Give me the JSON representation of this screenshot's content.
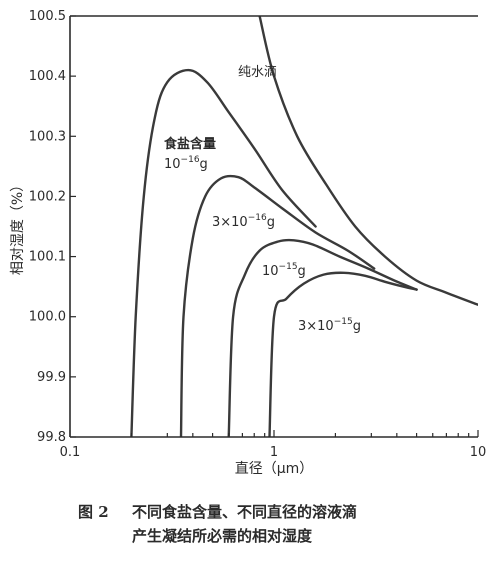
{
  "chart_data": {
    "type": "line",
    "x_scale": "log",
    "xlim": [
      0.1,
      10
    ],
    "ylim": [
      99.8,
      100.5
    ],
    "x_ticks": [
      "0.1",
      "1",
      "10"
    ],
    "y_ticks": [
      "99.8",
      "99.9",
      "100.0",
      "100.1",
      "100.2",
      "100.3",
      "100.4",
      "100.5"
    ],
    "xlabel": "直径（μm）",
    "ylabel": "相对湿度（%）",
    "series": [
      {
        "name": "纯水滴",
        "points": [
          [
            0.85,
            100.5
          ],
          [
            1,
            100.4
          ],
          [
            1.3,
            100.3
          ],
          [
            1.8,
            100.22
          ],
          [
            2.5,
            100.15
          ],
          [
            3.5,
            100.1
          ],
          [
            5,
            100.06
          ],
          [
            7,
            100.04
          ],
          [
            10,
            100.02
          ]
        ]
      },
      {
        "name": "10⁻¹⁶ g",
        "points": [
          [
            0.2,
            99.8
          ],
          [
            0.21,
            100.0
          ],
          [
            0.23,
            100.2
          ],
          [
            0.26,
            100.33
          ],
          [
            0.3,
            100.39
          ],
          [
            0.38,
            100.41
          ],
          [
            0.47,
            100.39
          ],
          [
            0.6,
            100.34
          ],
          [
            0.8,
            100.28
          ],
          [
            1.1,
            100.21
          ],
          [
            1.6,
            100.15
          ]
        ]
      },
      {
        "name": "3×10⁻¹⁶ g",
        "points": [
          [
            0.35,
            99.8
          ],
          [
            0.36,
            100.0
          ],
          [
            0.4,
            100.13
          ],
          [
            0.46,
            100.2
          ],
          [
            0.55,
            100.23
          ],
          [
            0.67,
            100.232
          ],
          [
            0.8,
            100.215
          ],
          [
            1.1,
            100.18
          ],
          [
            1.6,
            100.14
          ],
          [
            2.3,
            100.11
          ],
          [
            3.1,
            100.08
          ]
        ]
      },
      {
        "name": "10⁻¹⁵ g",
        "points": [
          [
            0.6,
            99.8
          ],
          [
            0.63,
            100.0
          ],
          [
            0.72,
            100.07
          ],
          [
            0.85,
            100.11
          ],
          [
            1.05,
            100.125
          ],
          [
            1.25,
            100.127
          ],
          [
            1.55,
            100.12
          ],
          [
            2.1,
            100.1
          ],
          [
            2.9,
            100.08
          ],
          [
            3.9,
            100.06
          ],
          [
            5,
            100.045
          ]
        ]
      },
      {
        "name": "3×10⁻¹⁵ g",
        "points": [
          [
            0.95,
            99.8
          ],
          [
            1.0,
            100.0
          ],
          [
            1.15,
            100.03
          ],
          [
            1.4,
            100.055
          ],
          [
            1.75,
            100.07
          ],
          [
            2.2,
            100.073
          ],
          [
            2.8,
            100.068
          ],
          [
            3.5,
            100.058
          ],
          [
            4.3,
            100.05
          ],
          [
            5,
            100.045
          ]
        ]
      }
    ],
    "annotations": [
      {
        "text": "纯水滴"
      },
      {
        "text": "食盐含量"
      },
      {
        "base": "10",
        "exp": "−16",
        "unit": "g"
      },
      {
        "base": "3×10",
        "exp": "−16",
        "unit": "g"
      },
      {
        "base": "10",
        "exp": "−15",
        "unit": "g"
      },
      {
        "base": "3×10",
        "exp": "−15",
        "unit": "g"
      }
    ]
  },
  "caption": {
    "figure_no": "图 2",
    "line1": "不同食盐含量、不同直径的溶液滴",
    "line2": "产生凝结所必需的相对湿度"
  }
}
